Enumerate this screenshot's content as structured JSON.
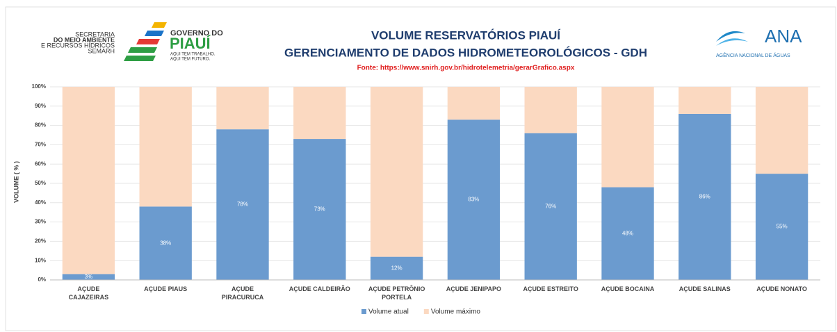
{
  "header": {
    "semarh": [
      "SECRETARIA",
      "DO MEIO AMBIENTE",
      "E RECURSOS HÍDRICOS",
      "SEMARH"
    ],
    "governo": [
      "GOVERNO DO",
      "PIAUÍ",
      "AQUI TEM TRABALHO.",
      "AQUI TEM FUTURO."
    ],
    "ana": [
      "ANA",
      "AGÊNCIA NACIONAL DE ÁGUAS"
    ]
  },
  "chart_data": {
    "type": "stacked_bar",
    "title": "VOLUME RESERVATÓRIOS PIAUÍ",
    "subtitle": "GERENCIAMENTO DE DADOS HIDROMETEOROLÓGICOS - GDH",
    "source": "Fonte: https://www.snirh.gov.br/hidrotelemetria/gerarGrafico.aspx",
    "y_label": "VOLUME ( % )",
    "categories": [
      "AÇUDE CAJAZEIRAS",
      "AÇUDE PIAUS",
      "AÇUDE PIRACURUCA",
      "AÇUDE CALDEIRÃO",
      "AÇUDE PETRÔNIO PORTELA",
      "AÇUDE JENIPAPO",
      "AÇUDE ESTREITO",
      "AÇUDE BOCAINA",
      "AÇUDE SALINAS",
      "AÇUDE NONATO"
    ],
    "series": [
      {
        "name": "Volume atual",
        "color": "#6b9bcf",
        "values": [
          3,
          38,
          78,
          73,
          12,
          83,
          76,
          48,
          86,
          55
        ],
        "value_labels": [
          "3%",
          "38%",
          "78%",
          "73%",
          "12%",
          "83%",
          "76%",
          "48%",
          "86%",
          "55%"
        ]
      },
      {
        "name": "Volume máximo",
        "color": "#fbd9c1",
        "values": [
          97,
          62,
          22,
          27,
          88,
          17,
          24,
          52,
          14,
          45
        ]
      }
    ],
    "ylim": [
      0,
      100
    ],
    "yticks": [
      {
        "value": 0,
        "label": "0%"
      },
      {
        "value": 10,
        "label": "10%"
      },
      {
        "value": 20,
        "label": "20%"
      },
      {
        "value": 30,
        "label": "30%"
      },
      {
        "value": 40,
        "label": "40%"
      },
      {
        "value": 50,
        "label": "50%"
      },
      {
        "value": 60,
        "label": "60%"
      },
      {
        "value": 70,
        "label": "70%"
      },
      {
        "value": 80,
        "label": "80%"
      },
      {
        "value": 90,
        "label": "90%"
      },
      {
        "value": 100,
        "label": "100%"
      }
    ],
    "grid": true,
    "legend": "bottom"
  }
}
